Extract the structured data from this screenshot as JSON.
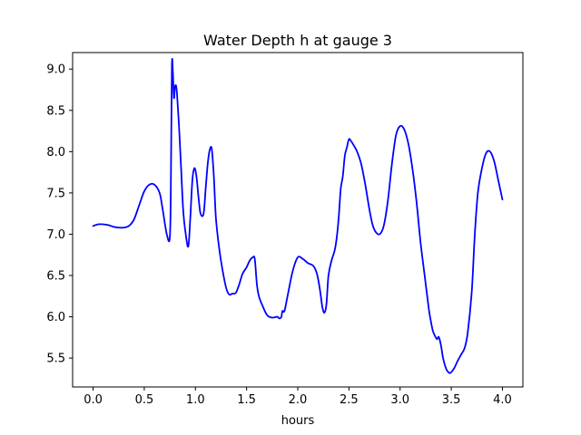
{
  "chart_data": {
    "type": "line",
    "title": "Water Depth h at gauge 3",
    "xlabel": "hours",
    "ylabel": "",
    "xlim": [
      -0.2,
      4.2
    ],
    "ylim": [
      5.15,
      9.2
    ],
    "grid": false,
    "xticks": [
      0.0,
      0.5,
      1.0,
      1.5,
      2.0,
      2.5,
      3.0,
      3.5,
      4.0
    ],
    "xtick_labels": [
      "0.0",
      "0.5",
      "1.0",
      "1.5",
      "2.0",
      "2.5",
      "3.0",
      "3.5",
      "4.0"
    ],
    "yticks": [
      5.5,
      6.0,
      6.5,
      7.0,
      7.5,
      8.0,
      8.5,
      9.0
    ],
    "ytick_labels": [
      "5.5",
      "6.0",
      "6.5",
      "7.0",
      "7.5",
      "8.0",
      "8.5",
      "9.0"
    ],
    "series": [
      {
        "color": "#0000ff",
        "x": [
          0.0,
          0.05,
          0.1,
          0.15,
          0.2,
          0.25,
          0.3,
          0.35,
          0.4,
          0.45,
          0.5,
          0.55,
          0.6,
          0.65,
          0.68,
          0.72,
          0.75,
          0.76,
          0.77,
          0.78,
          0.79,
          0.8,
          0.81,
          0.82,
          0.84,
          0.86,
          0.88,
          0.9,
          0.93,
          0.95,
          0.97,
          0.99,
          1.01,
          1.03,
          1.05,
          1.08,
          1.1,
          1.12,
          1.14,
          1.16,
          1.18,
          1.2,
          1.23,
          1.26,
          1.3,
          1.33,
          1.36,
          1.38,
          1.4,
          1.43,
          1.46,
          1.5,
          1.53,
          1.56,
          1.58,
          1.6,
          1.62,
          1.65,
          1.7,
          1.75,
          1.8,
          1.82,
          1.84,
          1.85,
          1.87,
          1.9,
          1.95,
          2.0,
          2.05,
          2.1,
          2.15,
          2.18,
          2.2,
          2.22,
          2.24,
          2.26,
          2.28,
          2.3,
          2.33,
          2.36,
          2.38,
          2.4,
          2.42,
          2.44,
          2.46,
          2.48,
          2.5,
          2.52,
          2.55,
          2.58,
          2.62,
          2.66,
          2.7,
          2.73,
          2.76,
          2.8,
          2.84,
          2.88,
          2.92,
          2.96,
          3.0,
          3.04,
          3.08,
          3.12,
          3.16,
          3.2,
          3.24,
          3.28,
          3.3,
          3.32,
          3.34,
          3.36,
          3.37,
          3.38,
          3.4,
          3.42,
          3.45,
          3.48,
          3.5,
          3.53,
          3.56,
          3.6,
          3.63,
          3.66,
          3.7,
          3.73,
          3.76,
          3.8,
          3.84,
          3.88,
          3.92,
          3.96,
          4.0
        ],
        "y": [
          7.1,
          7.12,
          7.12,
          7.11,
          7.09,
          7.08,
          7.08,
          7.1,
          7.18,
          7.35,
          7.52,
          7.6,
          7.6,
          7.5,
          7.3,
          7.0,
          6.96,
          7.6,
          9.03,
          8.95,
          8.65,
          8.78,
          8.8,
          8.7,
          8.3,
          7.8,
          7.3,
          7.05,
          6.85,
          7.2,
          7.65,
          7.8,
          7.7,
          7.45,
          7.25,
          7.25,
          7.55,
          7.85,
          8.02,
          8.03,
          7.7,
          7.2,
          6.85,
          6.6,
          6.35,
          6.27,
          6.28,
          6.28,
          6.3,
          6.4,
          6.52,
          6.6,
          6.68,
          6.72,
          6.7,
          6.4,
          6.25,
          6.15,
          6.02,
          5.99,
          6.0,
          5.98,
          6.0,
          6.07,
          6.07,
          6.25,
          6.55,
          6.72,
          6.7,
          6.65,
          6.62,
          6.55,
          6.45,
          6.3,
          6.12,
          6.05,
          6.15,
          6.5,
          6.68,
          6.8,
          6.95,
          7.2,
          7.55,
          7.7,
          7.95,
          8.05,
          8.15,
          8.13,
          8.07,
          8.0,
          7.85,
          7.6,
          7.3,
          7.12,
          7.03,
          7.0,
          7.1,
          7.4,
          7.85,
          8.2,
          8.31,
          8.27,
          8.1,
          7.8,
          7.4,
          6.9,
          6.5,
          6.1,
          5.95,
          5.83,
          5.77,
          5.73,
          5.75,
          5.75,
          5.65,
          5.5,
          5.37,
          5.32,
          5.33,
          5.38,
          5.46,
          5.55,
          5.62,
          5.8,
          6.3,
          7.0,
          7.5,
          7.8,
          7.98,
          8.0,
          7.88,
          7.65,
          7.42
        ]
      }
    ]
  }
}
